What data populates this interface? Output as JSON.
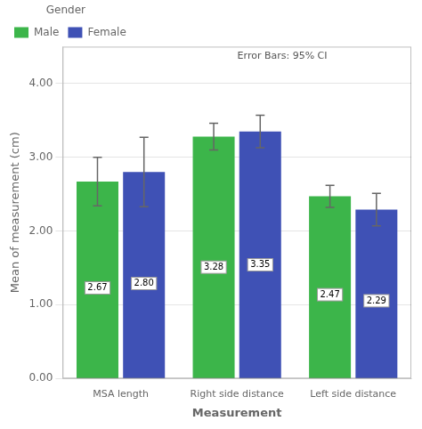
{
  "chart_data": {
    "type": "bar",
    "categories": [
      "MSA length",
      "Right side distance",
      "Left side distance"
    ],
    "series": [
      {
        "name": "Male",
        "color": "#3cb54a",
        "values": [
          2.67,
          3.28,
          2.47
        ],
        "value_labels": [
          "2.67",
          "3.28",
          "2.47"
        ],
        "errors": [
          0.33,
          0.18,
          0.15
        ]
      },
      {
        "name": "Female",
        "color": "#3f51b5",
        "values": [
          2.8,
          3.35,
          2.29
        ],
        "value_labels": [
          "2.80",
          "3.35",
          "2.29"
        ],
        "errors": [
          0.47,
          0.22,
          0.22
        ]
      }
    ],
    "ylabel": "Mean of measurement (cm)",
    "xlabel": "Measurement",
    "legend_title": "Gender",
    "annotation": "Error Bars: 95% CI",
    "ylim": [
      0,
      4.5
    ],
    "yticks": [
      {
        "value": 0,
        "label": "0.00"
      },
      {
        "value": 1,
        "label": "1.00"
      },
      {
        "value": 2,
        "label": "2.00"
      },
      {
        "value": 3,
        "label": "3.00"
      },
      {
        "value": 4,
        "label": "4.00"
      }
    ],
    "grid": true,
    "legend": "upper left",
    "data_labels": true
  }
}
